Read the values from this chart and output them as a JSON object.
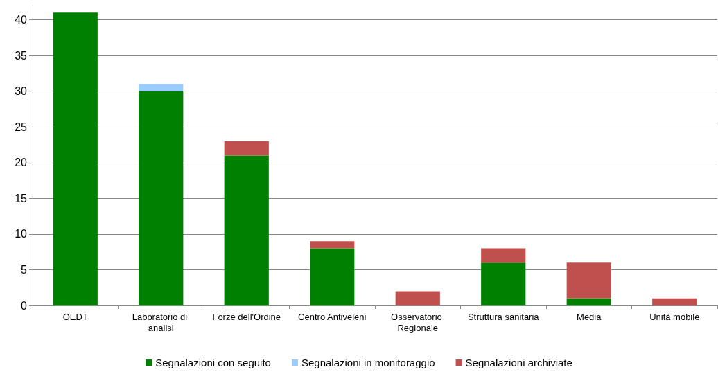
{
  "chart_data": {
    "type": "bar",
    "stacked": true,
    "categories": [
      "OEDT",
      "Laboratorio di analisi",
      "Forze dell'Ordine",
      "Centro Antiveleni",
      "Osservatorio Regionale",
      "Struttura sanitaria",
      "Media",
      "Unità mobile"
    ],
    "series": [
      {
        "name": "Segnalazioni con seguito",
        "color": "#008000",
        "values": [
          41,
          30,
          21,
          8,
          0,
          6,
          1,
          0
        ]
      },
      {
        "name": "Segnalazioni in monitoraggio",
        "color": "#99ccff",
        "values": [
          0,
          1,
          0,
          0,
          0,
          0,
          0,
          0
        ]
      },
      {
        "name": "Segnalazioni archiviate",
        "color": "#c0504d",
        "values": [
          0,
          0,
          2,
          1,
          2,
          2,
          5,
          1
        ]
      }
    ],
    "ylim": [
      0,
      42
    ],
    "yticks": [
      0,
      5,
      10,
      15,
      20,
      25,
      30,
      35,
      40
    ],
    "grid": "y",
    "legend": "bottom"
  }
}
